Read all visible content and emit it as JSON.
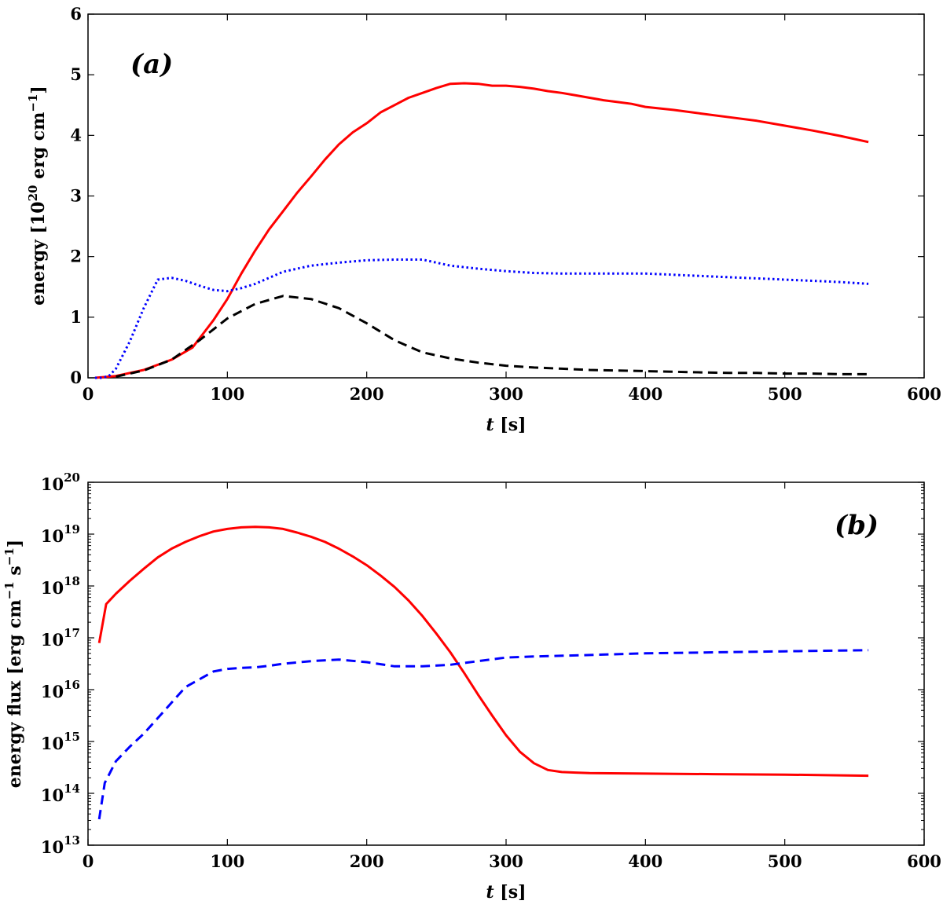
{
  "chart_data": [
    {
      "type": "line",
      "panel_label": "(a)",
      "xlabel_var": "t",
      "xlabel_unit": " [s]",
      "ylabel_pre": "energy [10",
      "ylabel_exp": "20",
      "ylabel_mid": " erg cm",
      "ylabel_exp2": "−1",
      "ylabel_post": "]",
      "xlim": [
        0,
        600
      ],
      "ylim": [
        0,
        6
      ],
      "yscale": "linear",
      "xticks": [
        "0",
        "100",
        "200",
        "300",
        "400",
        "500",
        "600"
      ],
      "yticks": [
        "0",
        "1",
        "2",
        "3",
        "4",
        "5",
        "6"
      ],
      "series": [
        {
          "name": "red-solid",
          "color": "#ff0000",
          "style": "solid",
          "x": [
            5,
            20,
            40,
            60,
            75,
            90,
            100,
            110,
            120,
            130,
            140,
            150,
            160,
            170,
            180,
            190,
            200,
            210,
            220,
            230,
            240,
            250,
            260,
            270,
            280,
            290,
            300,
            310,
            320,
            330,
            340,
            350,
            360,
            370,
            380,
            390,
            400,
            420,
            440,
            460,
            480,
            500,
            520,
            540,
            560
          ],
          "y": [
            0,
            0.03,
            0.13,
            0.3,
            0.5,
            0.95,
            1.3,
            1.72,
            2.1,
            2.45,
            2.75,
            3.05,
            3.32,
            3.6,
            3.85,
            4.05,
            4.2,
            4.38,
            4.5,
            4.62,
            4.7,
            4.78,
            4.85,
            4.86,
            4.85,
            4.82,
            4.82,
            4.8,
            4.77,
            4.73,
            4.7,
            4.66,
            4.62,
            4.58,
            4.55,
            4.52,
            4.47,
            4.42,
            4.36,
            4.3,
            4.24,
            4.16,
            4.08,
            3.99,
            3.89
          ]
        },
        {
          "name": "blue-dotted",
          "color": "#0000ff",
          "style": "dotted",
          "x": [
            5,
            10,
            15,
            20,
            30,
            40,
            50,
            60,
            70,
            80,
            90,
            100,
            110,
            120,
            140,
            160,
            180,
            200,
            220,
            240,
            260,
            280,
            300,
            320,
            340,
            360,
            380,
            400,
            420,
            440,
            460,
            480,
            500,
            520,
            540,
            560
          ],
          "y": [
            0,
            0,
            0.03,
            0.15,
            0.6,
            1.15,
            1.62,
            1.65,
            1.6,
            1.52,
            1.45,
            1.43,
            1.48,
            1.55,
            1.75,
            1.85,
            1.9,
            1.94,
            1.95,
            1.95,
            1.85,
            1.8,
            1.76,
            1.73,
            1.72,
            1.72,
            1.72,
            1.72,
            1.7,
            1.68,
            1.66,
            1.64,
            1.62,
            1.6,
            1.58,
            1.55
          ]
        },
        {
          "name": "black-dashed",
          "color": "#000000",
          "style": "dashed",
          "x": [
            20,
            40,
            60,
            80,
            100,
            120,
            140,
            160,
            180,
            200,
            220,
            240,
            260,
            280,
            300,
            320,
            340,
            360,
            380,
            400,
            420,
            440,
            460,
            480,
            500,
            520,
            540,
            560
          ],
          "y": [
            0.02,
            0.12,
            0.3,
            0.62,
            0.98,
            1.22,
            1.35,
            1.3,
            1.15,
            0.9,
            0.62,
            0.42,
            0.32,
            0.25,
            0.2,
            0.17,
            0.15,
            0.13,
            0.12,
            0.11,
            0.1,
            0.09,
            0.08,
            0.08,
            0.07,
            0.07,
            0.06,
            0.06
          ]
        }
      ]
    },
    {
      "type": "line",
      "panel_label": "(b)",
      "xlabel_var": "t",
      "xlabel_unit": " [s]",
      "ylabel_pre": "energy flux [erg cm",
      "ylabel_exp": "−1",
      "ylabel_mid": " s",
      "ylabel_exp2": "−1",
      "ylabel_post": "]",
      "xlim": [
        0,
        600
      ],
      "ylim_exp": [
        13,
        20
      ],
      "yscale": "log",
      "xticks": [
        "0",
        "100",
        "200",
        "300",
        "400",
        "500",
        "600"
      ],
      "yticks": [
        {
          "base": "10",
          "exp": "13"
        },
        {
          "base": "10",
          "exp": "14"
        },
        {
          "base": "10",
          "exp": "15"
        },
        {
          "base": "10",
          "exp": "16"
        },
        {
          "base": "10",
          "exp": "17"
        },
        {
          "base": "10",
          "exp": "18"
        },
        {
          "base": "10",
          "exp": "19"
        },
        {
          "base": "10",
          "exp": "20"
        }
      ],
      "series": [
        {
          "name": "red-solid",
          "color": "#ff0000",
          "style": "solid",
          "x": [
            8,
            13,
            20,
            30,
            40,
            50,
            60,
            70,
            80,
            90,
            100,
            110,
            120,
            130,
            140,
            150,
            160,
            170,
            180,
            190,
            200,
            210,
            220,
            230,
            240,
            250,
            260,
            270,
            280,
            290,
            300,
            310,
            320,
            330,
            340,
            350,
            360,
            400,
            450,
            500,
            560
          ],
          "y_log10": [
            16.9,
            17.65,
            17.85,
            18.1,
            18.33,
            18.55,
            18.72,
            18.85,
            18.96,
            19.05,
            19.1,
            19.13,
            19.14,
            19.13,
            19.1,
            19.03,
            18.95,
            18.85,
            18.72,
            18.57,
            18.4,
            18.2,
            17.98,
            17.72,
            17.42,
            17.08,
            16.72,
            16.32,
            15.9,
            15.5,
            15.12,
            14.8,
            14.58,
            14.45,
            14.41,
            14.4,
            14.39,
            14.38,
            14.37,
            14.36,
            14.34
          ]
        },
        {
          "name": "blue-dashed",
          "color": "#0000ff",
          "style": "dashed",
          "x": [
            8,
            12,
            20,
            30,
            40,
            50,
            60,
            70,
            80,
            90,
            100,
            110,
            120,
            130,
            140,
            160,
            180,
            200,
            220,
            240,
            260,
            280,
            300,
            320,
            350,
            400,
            450,
            500,
            560
          ],
          "y_log10": [
            13.5,
            14.2,
            14.62,
            14.9,
            15.15,
            15.45,
            15.75,
            16.05,
            16.2,
            16.35,
            16.4,
            16.42,
            16.43,
            16.46,
            16.5,
            16.55,
            16.58,
            16.53,
            16.45,
            16.45,
            16.48,
            16.55,
            16.62,
            16.64,
            16.66,
            16.7,
            16.72,
            16.74,
            16.76
          ]
        }
      ]
    }
  ]
}
